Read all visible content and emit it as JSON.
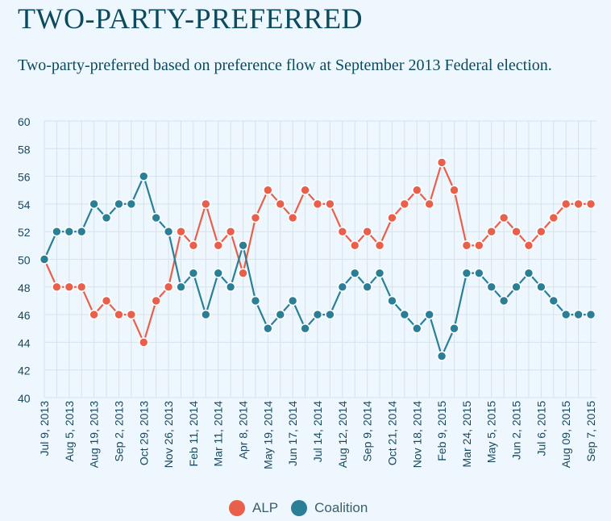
{
  "title": "TWO-PARTY-PREFERRED",
  "subtitle": "Two-party-preferred based on preference flow at September 2013 Federal election.",
  "colors": {
    "alp": "#e8604c",
    "coalition": "#2a7f97",
    "grid": "#d6e1ea",
    "text": "#17495e",
    "background": "#eef7fd"
  },
  "legend": [
    {
      "name": "ALP",
      "color": "#e8604c"
    },
    {
      "name": "Coalition",
      "color": "#2a7f97"
    }
  ],
  "chart_data": {
    "type": "line",
    "title": "TWO-PARTY-PREFERRED",
    "subtitle": "Two-party-preferred based on preference flow at September 2013 Federal election.",
    "ylim": [
      40,
      60
    ],
    "yticks": [
      60,
      58,
      56,
      54,
      52,
      50,
      48,
      46,
      44,
      42,
      40
    ],
    "grid": true,
    "legend_position": "bottom",
    "x_tick_labels": [
      "Jul 9, 2013",
      "Aug 5, 2013",
      "Aug 19, 2013",
      "Sep 2, 2013",
      "Oct 29, 2013",
      "Nov 26, 2013",
      "Feb 11, 2014",
      "Mar 11, 2014",
      "Apr 8, 2014",
      "May 19, 2014",
      "Jun 17, 2014",
      "Jul 14, 2014",
      "Aug 12, 2014",
      "Sep 9, 2014",
      "Oct 21, 2014",
      "Nov 18, 2014",
      "Feb 9, 2015",
      "Mar 24, 2015",
      "May 5, 2015",
      "Jun 2, 2015",
      "Jul 6, 2015",
      "Aug 09, 2015",
      "Sep 7, 2015"
    ],
    "series": [
      {
        "name": "ALP",
        "color": "#e8604c",
        "values": [
          50,
          48,
          48,
          48,
          46,
          47,
          46,
          46,
          44,
          47,
          48,
          52,
          51,
          54,
          51,
          52,
          49,
          53,
          55,
          54,
          53,
          55,
          54,
          54,
          52,
          51,
          52,
          51,
          53,
          54,
          55,
          54,
          57,
          55,
          51,
          51,
          52,
          53,
          52,
          51,
          52,
          53,
          54,
          54,
          54
        ]
      },
      {
        "name": "Coalition",
        "color": "#2a7f97",
        "values": [
          50,
          52,
          52,
          52,
          54,
          53,
          54,
          54,
          56,
          53,
          52,
          48,
          49,
          46,
          49,
          48,
          51,
          47,
          45,
          46,
          47,
          45,
          46,
          46,
          48,
          49,
          48,
          49,
          47,
          46,
          45,
          46,
          43,
          45,
          49,
          49,
          48,
          47,
          48,
          49,
          48,
          47,
          46,
          46,
          46
        ]
      }
    ]
  }
}
